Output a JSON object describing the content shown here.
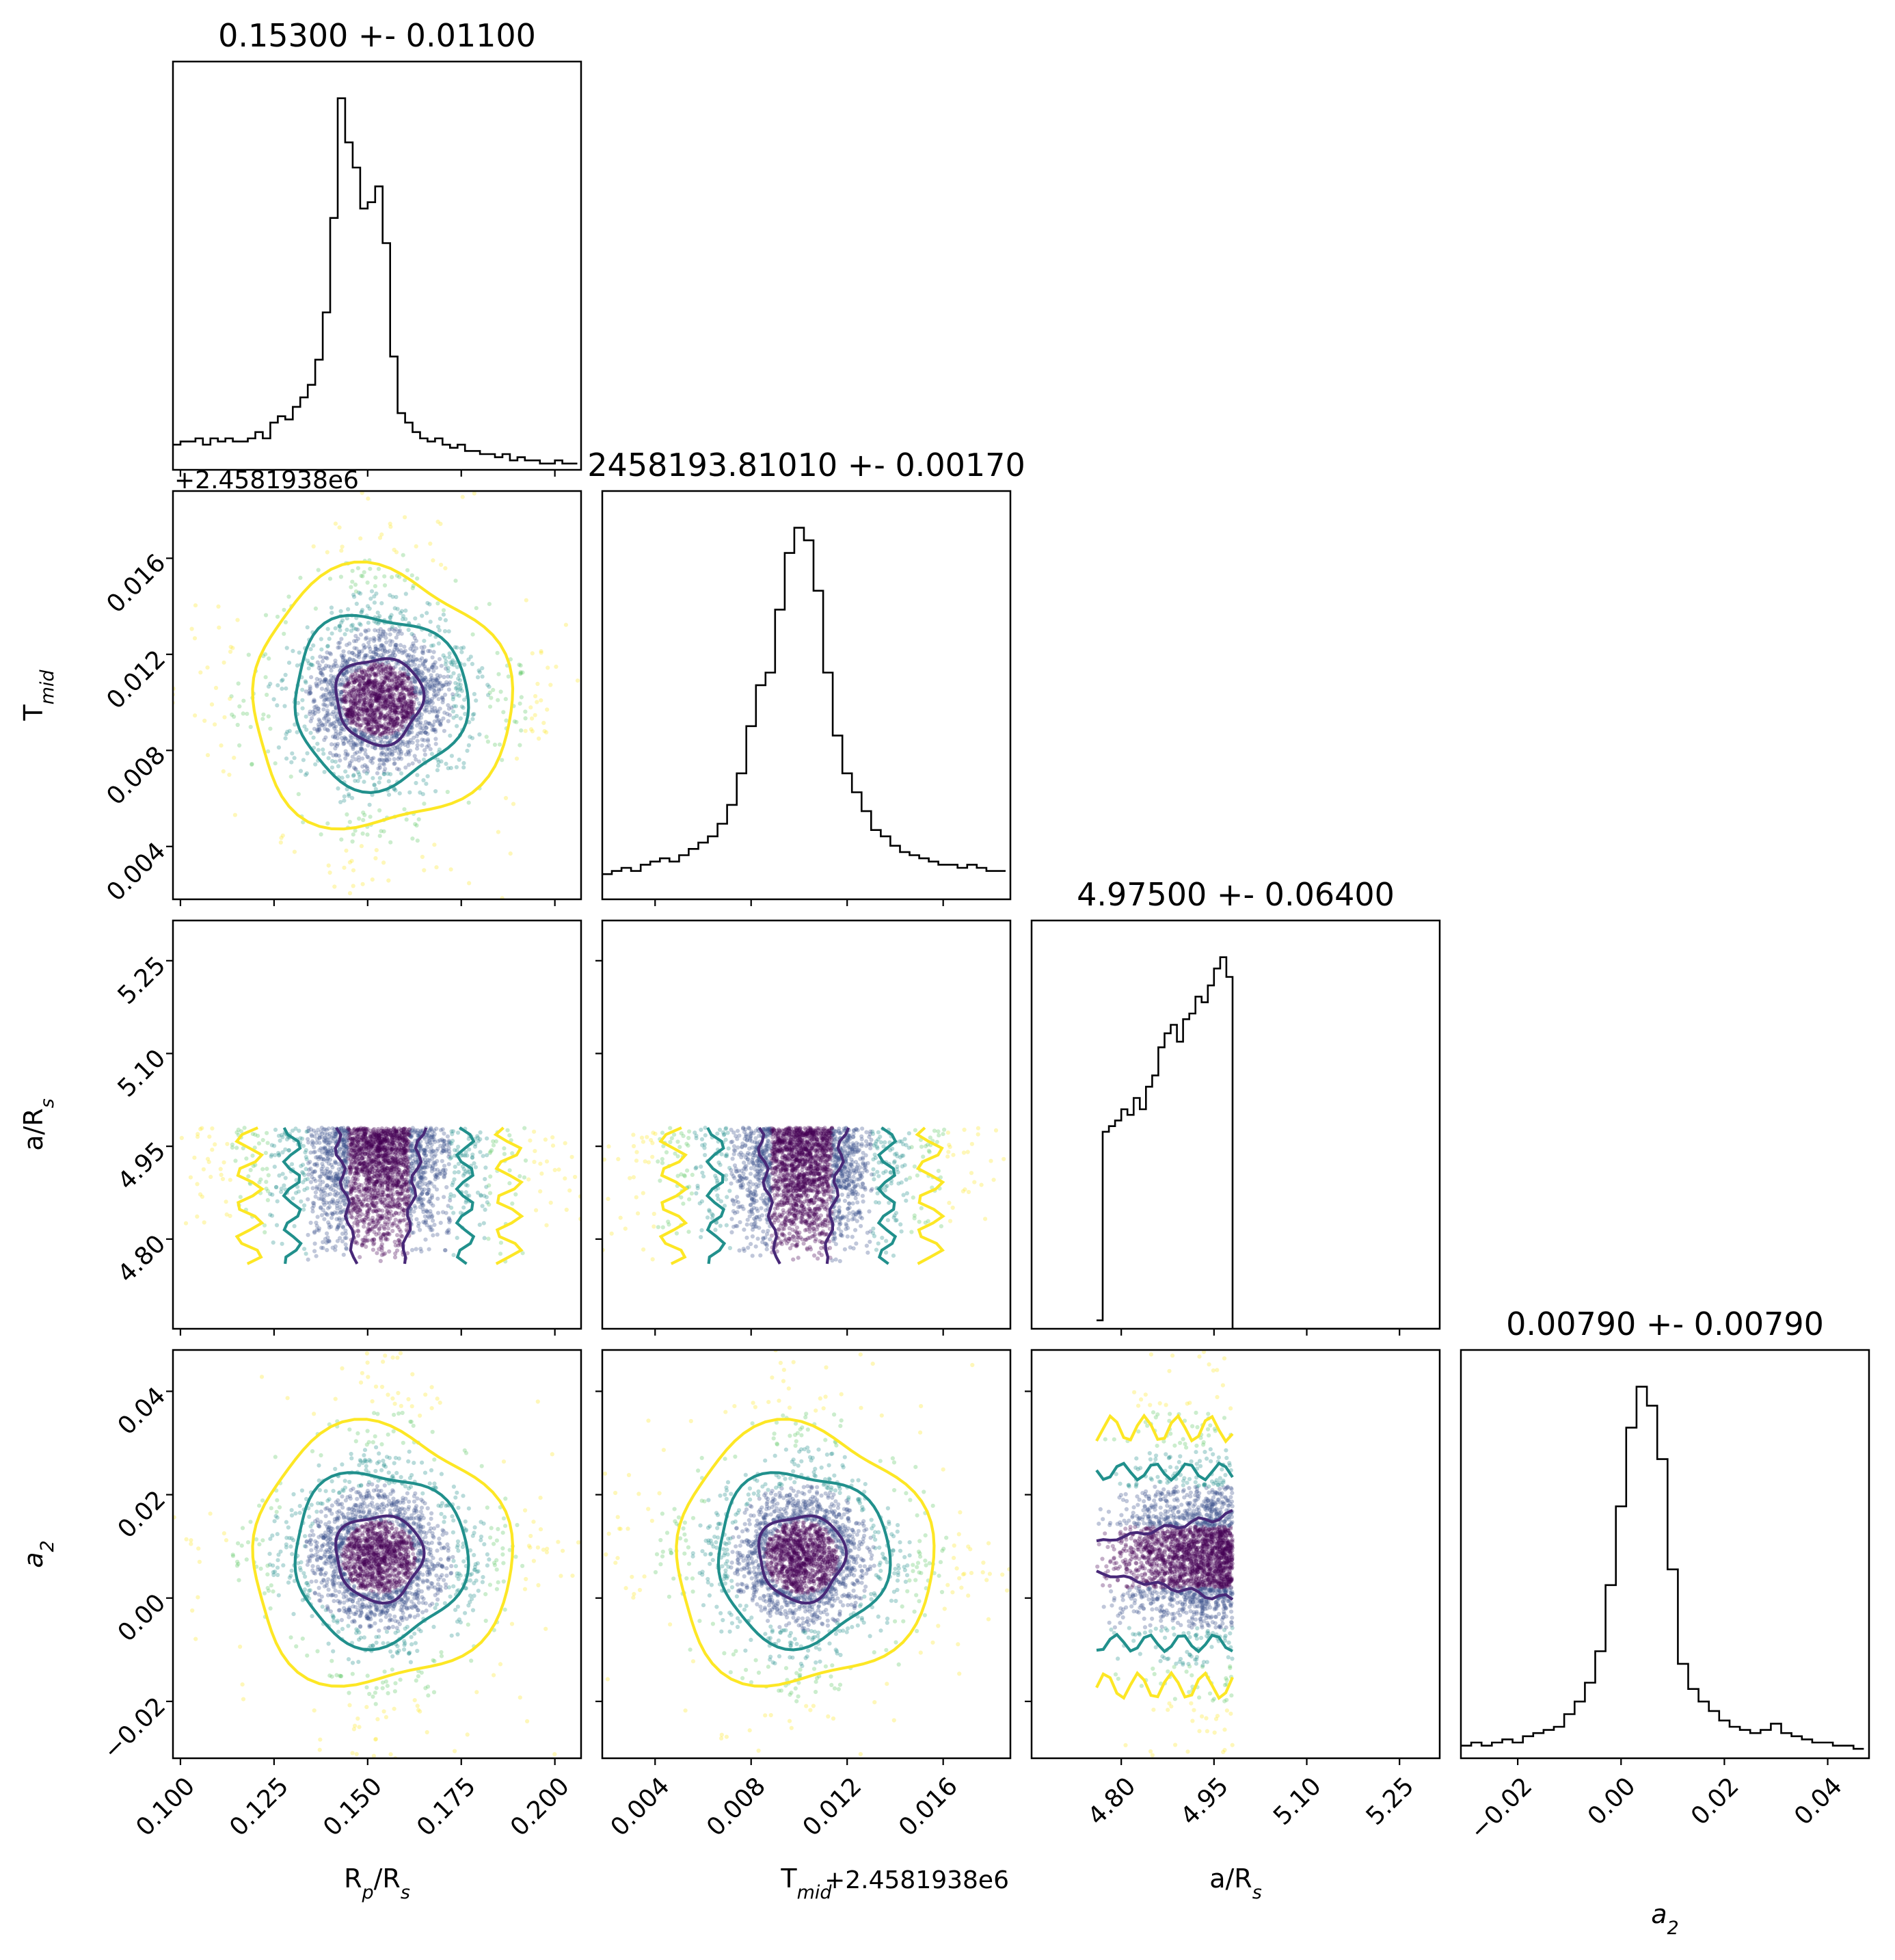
{
  "chart_data": {
    "type": "corner",
    "parameters": [
      {
        "key": "rprs",
        "label_main": "R",
        "label_sub1": "p",
        "label_mid": "/R",
        "label_sub2": "s",
        "range": [
          0.098,
          0.207
        ],
        "ticks": [
          0.1,
          0.125,
          0.15,
          0.175,
          0.2
        ],
        "tick_labels": [
          "0.100",
          "0.125",
          "0.150",
          "0.175",
          "0.200"
        ],
        "title": "0.15300 +- 0.01100",
        "median": 0.153,
        "sigma": 0.011
      },
      {
        "key": "tmid",
        "label_main": "T",
        "label_sub1": "mid",
        "label_mid": "",
        "label_sub2": "",
        "range": [
          0.0018,
          0.0188
        ],
        "ticks": [
          0.004,
          0.008,
          0.012,
          0.016
        ],
        "tick_labels": [
          "0.004",
          "0.008",
          "0.012",
          "0.016"
        ],
        "title": "2458193.81010 +- 0.00170",
        "offset_text": "+2.4581938e6",
        "median": 0.0101,
        "sigma": 0.0017
      },
      {
        "key": "ars",
        "label_main": "a/R",
        "label_sub1": "",
        "label_mid": "",
        "label_sub2": "s",
        "range": [
          4.655,
          5.315
        ],
        "ticks": [
          4.8,
          4.95,
          5.1,
          5.25
        ],
        "tick_labels": [
          "4.80",
          "4.95",
          "5.10",
          "5.25"
        ],
        "title": "4.97500 +- 0.06400",
        "median": 4.975,
        "sigma": 0.064
      },
      {
        "key": "a2",
        "label_main": "a",
        "label_sub1": "",
        "label_mid": "",
        "label_sub2": "2",
        "italic": true,
        "range": [
          -0.031,
          0.048
        ],
        "ticks": [
          -0.02,
          0.0,
          0.02,
          0.04
        ],
        "tick_labels": [
          "−0.02",
          "0.00",
          "0.02",
          "0.04"
        ],
        "title": "0.00790 +- 0.00790",
        "median": 0.0079,
        "sigma": 0.0079
      }
    ],
    "histograms": {
      "rprs": {
        "centers": [
          0.099,
          0.101,
          0.103,
          0.105,
          0.107,
          0.109,
          0.111,
          0.113,
          0.115,
          0.117,
          0.119,
          0.121,
          0.123,
          0.125,
          0.127,
          0.129,
          0.131,
          0.133,
          0.135,
          0.137,
          0.139,
          0.141,
          0.143,
          0.145,
          0.147,
          0.149,
          0.151,
          0.153,
          0.155,
          0.157,
          0.159,
          0.161,
          0.163,
          0.165,
          0.167,
          0.169,
          0.171,
          0.173,
          0.175,
          0.177,
          0.179,
          0.181,
          0.183,
          0.185,
          0.187,
          0.189,
          0.191,
          0.193,
          0.195,
          0.197,
          0.199,
          0.201,
          0.203,
          0.205
        ],
        "values": [
          8,
          9,
          9,
          10,
          8,
          10,
          9,
          10,
          9,
          9,
          10,
          12,
          10,
          15,
          17,
          16,
          20,
          23,
          27,
          35,
          50,
          80,
          118,
          104,
          96,
          83,
          85,
          90,
          72,
          36,
          18,
          15,
          12,
          10,
          9,
          10,
          8,
          7,
          8,
          6,
          6,
          5,
          5,
          4,
          5,
          3,
          4,
          3,
          3,
          2,
          2,
          3,
          2,
          2
        ]
      },
      "tmid": {
        "centers": [
          0.002,
          0.0024,
          0.0028,
          0.0032,
          0.0036,
          0.004,
          0.0044,
          0.0048,
          0.0052,
          0.0056,
          0.006,
          0.0064,
          0.0068,
          0.0072,
          0.0076,
          0.008,
          0.0084,
          0.0088,
          0.0092,
          0.0096,
          0.01,
          0.0104,
          0.0108,
          0.0112,
          0.0116,
          0.012,
          0.0124,
          0.0128,
          0.0132,
          0.0136,
          0.014,
          0.0144,
          0.0148,
          0.0152,
          0.0156,
          0.016,
          0.0164,
          0.0168,
          0.0172,
          0.0176,
          0.018,
          0.0184
        ],
        "values": [
          8,
          9,
          10,
          9,
          11,
          12,
          13,
          12,
          14,
          16,
          18,
          20,
          24,
          30,
          40,
          55,
          68,
          72,
          92,
          110,
          118,
          114,
          98,
          72,
          52,
          40,
          34,
          28,
          22,
          20,
          17,
          15,
          14,
          13,
          12,
          11,
          11,
          10,
          11,
          10,
          9,
          9
        ]
      },
      "ars": {
        "centers": [
          4.765,
          4.775,
          4.785,
          4.795,
          4.805,
          4.815,
          4.825,
          4.835,
          4.845,
          4.855,
          4.865,
          4.875,
          4.885,
          4.895,
          4.905,
          4.915,
          4.925,
          4.935,
          4.945,
          4.955,
          4.965,
          4.975,
          4.985,
          5.0,
          5.1,
          5.2,
          5.3
        ],
        "values": [
          3,
          70,
          72,
          74,
          78,
          76,
          82,
          78,
          86,
          90,
          100,
          105,
          108,
          102,
          110,
          112,
          118,
          116,
          122,
          128,
          132,
          125,
          0,
          0,
          0,
          0,
          0
        ]
      },
      "a2": {
        "centers": [
          -0.03,
          -0.028,
          -0.026,
          -0.024,
          -0.022,
          -0.02,
          -0.018,
          -0.016,
          -0.014,
          -0.012,
          -0.01,
          -0.008,
          -0.006,
          -0.004,
          -0.002,
          0.0,
          0.002,
          0.004,
          0.006,
          0.008,
          0.01,
          0.012,
          0.014,
          0.016,
          0.018,
          0.02,
          0.022,
          0.024,
          0.026,
          0.028,
          0.03,
          0.032,
          0.034,
          0.036,
          0.038,
          0.04,
          0.042,
          0.044,
          0.046
        ],
        "values": [
          4,
          5,
          4,
          5,
          6,
          5,
          7,
          8,
          9,
          10,
          14,
          18,
          24,
          34,
          55,
          80,
          105,
          118,
          112,
          95,
          60,
          30,
          22,
          18,
          15,
          12,
          10,
          9,
          8,
          9,
          11,
          8,
          7,
          6,
          5,
          5,
          4,
          4,
          3
        ]
      }
    },
    "contour_levels": [
      {
        "name": "1-sigma",
        "color": "#482878",
        "scale": 1.0
      },
      {
        "name": "2-sigma",
        "color": "#21908c",
        "scale": 2.0
      },
      {
        "name": "3-sigma",
        "color": "#fde725",
        "scale": 3.0
      }
    ],
    "scatter_colors": [
      "#440154",
      "#3b528b",
      "#21908c",
      "#5dc863",
      "#fde725"
    ],
    "ars_bounds": [
      4.76,
      4.98
    ],
    "points_per_panel": 2600,
    "grid": false
  }
}
